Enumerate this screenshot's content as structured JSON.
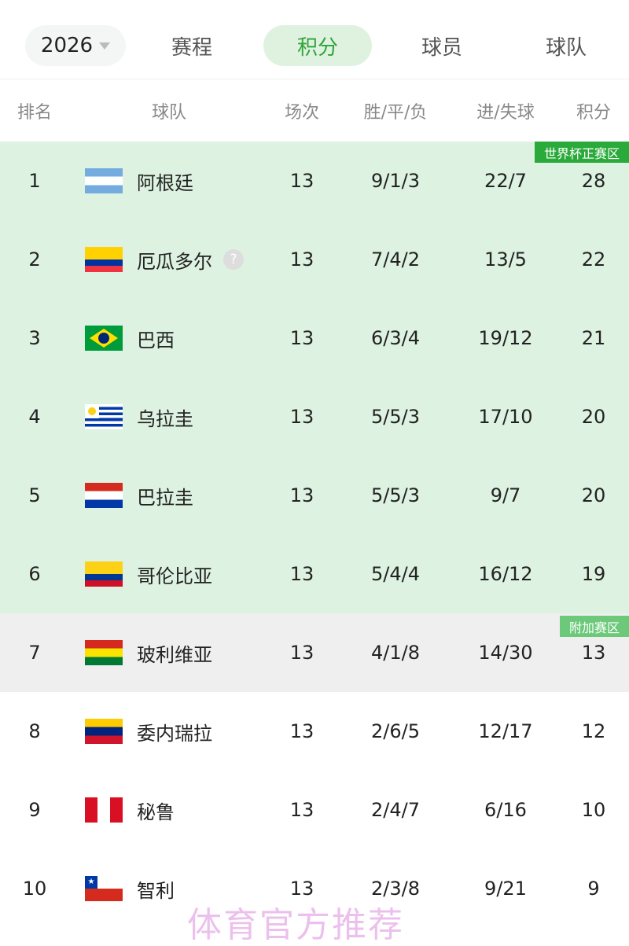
{
  "nav": {
    "year": "2026",
    "tabs": [
      {
        "label": "赛程",
        "active": false
      },
      {
        "label": "积分",
        "active": true
      },
      {
        "label": "球员",
        "active": false
      },
      {
        "label": "球队",
        "active": false
      }
    ]
  },
  "columns": {
    "rank": "排名",
    "team": "球队",
    "played": "场次",
    "wdl": "胜/平/负",
    "goals": "进/失球",
    "points": "积分"
  },
  "zones": {
    "qualify": {
      "label": "世界杯正赛区",
      "color": "#2aaa3a",
      "bg": "#ddf2e0"
    },
    "playoff": {
      "label": "附加赛区",
      "color": "#6cc97a",
      "bg": "#efefef"
    }
  },
  "help_icon": "?",
  "rows": [
    {
      "rank": "1",
      "team": "阿根廷",
      "flag": "argentina",
      "played": "13",
      "wdl": "9/1/3",
      "goals": "22/7",
      "points": "28"
    },
    {
      "rank": "2",
      "team": "厄瓜多尔",
      "flag": "ecuador",
      "played": "13",
      "wdl": "7/4/2",
      "goals": "13/5",
      "points": "22",
      "help": true
    },
    {
      "rank": "3",
      "team": "巴西",
      "flag": "brazil",
      "played": "13",
      "wdl": "6/3/4",
      "goals": "19/12",
      "points": "21"
    },
    {
      "rank": "4",
      "team": "乌拉圭",
      "flag": "uruguay",
      "played": "13",
      "wdl": "5/5/3",
      "goals": "17/10",
      "points": "20"
    },
    {
      "rank": "5",
      "team": "巴拉圭",
      "flag": "paraguay",
      "played": "13",
      "wdl": "5/5/3",
      "goals": "9/7",
      "points": "20"
    },
    {
      "rank": "6",
      "team": "哥伦比亚",
      "flag": "colombia",
      "played": "13",
      "wdl": "5/4/4",
      "goals": "16/12",
      "points": "19"
    },
    {
      "rank": "7",
      "team": "玻利维亚",
      "flag": "bolivia",
      "played": "13",
      "wdl": "4/1/8",
      "goals": "14/30",
      "points": "13"
    },
    {
      "rank": "8",
      "team": "委内瑞拉",
      "flag": "venezuela",
      "played": "13",
      "wdl": "2/6/5",
      "goals": "12/17",
      "points": "12"
    },
    {
      "rank": "9",
      "team": "秘鲁",
      "flag": "peru",
      "played": "13",
      "wdl": "2/4/7",
      "goals": "6/16",
      "points": "10"
    },
    {
      "rank": "10",
      "team": "智利",
      "flag": "chile",
      "played": "13",
      "wdl": "2/3/8",
      "goals": "9/21",
      "points": "9"
    }
  ],
  "watermark": "体育官方推荐"
}
